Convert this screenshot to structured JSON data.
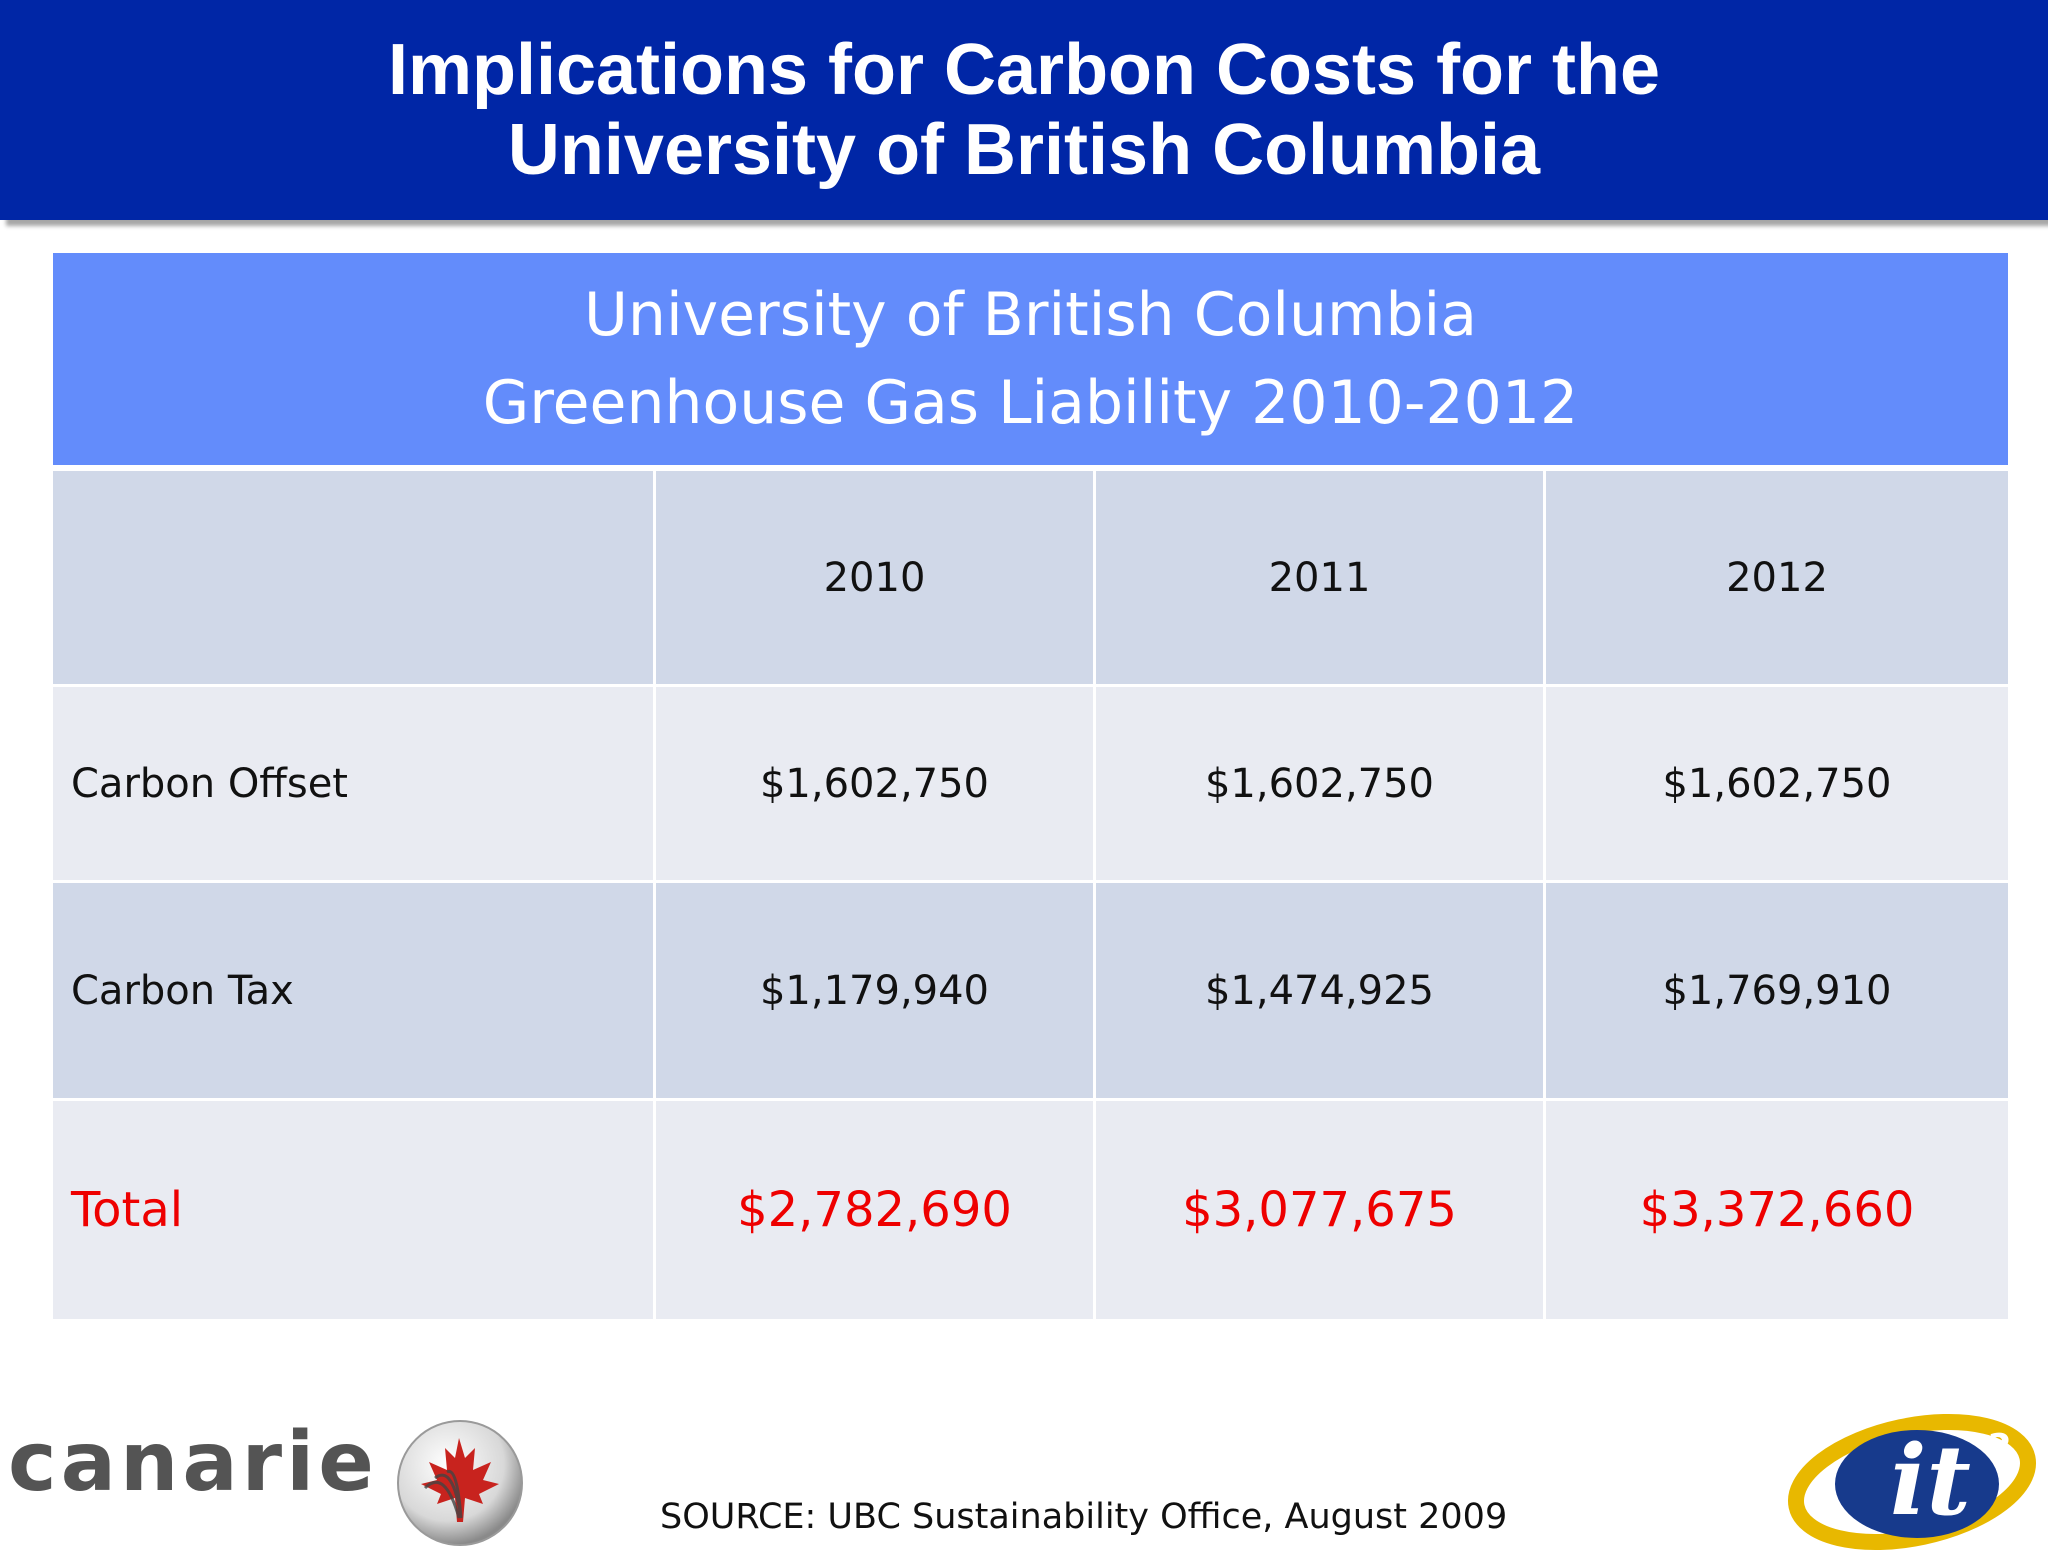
{
  "title": {
    "line1": "Implications for Carbon Costs for the",
    "line2": "University of British Columbia"
  },
  "table": {
    "header": {
      "line1": "University of British Columbia",
      "line2": "Greenhouse Gas Liability 2010-2012"
    },
    "columns": [
      "",
      "2010",
      "2011",
      "2012"
    ],
    "rows": [
      {
        "label": "Carbon Offset",
        "values": [
          "$1,602,750",
          "$1,602,750",
          "$1,602,750"
        ]
      },
      {
        "label": "Carbon Tax",
        "values": [
          "$1,179,940",
          "$1,474,925",
          "$1,769,910"
        ]
      },
      {
        "label": "Total",
        "values": [
          "$2,782,690",
          "$3,077,675",
          "$3,372,660"
        ],
        "highlight_color": "#ee0000"
      }
    ]
  },
  "footer": {
    "source": "SOURCE:  UBC Sustainability Office, August 2009",
    "logo_left": {
      "text": "canarie",
      "icon": "maple-leaf-logo-icon"
    },
    "logo_right": {
      "icon": "it2-logo-icon"
    }
  },
  "colors": {
    "banner": "#0026a6",
    "table_header": "#638cfb",
    "row_dark": "#d0d8e8",
    "row_light": "#e9ebf2",
    "total_text": "#ee0000"
  }
}
